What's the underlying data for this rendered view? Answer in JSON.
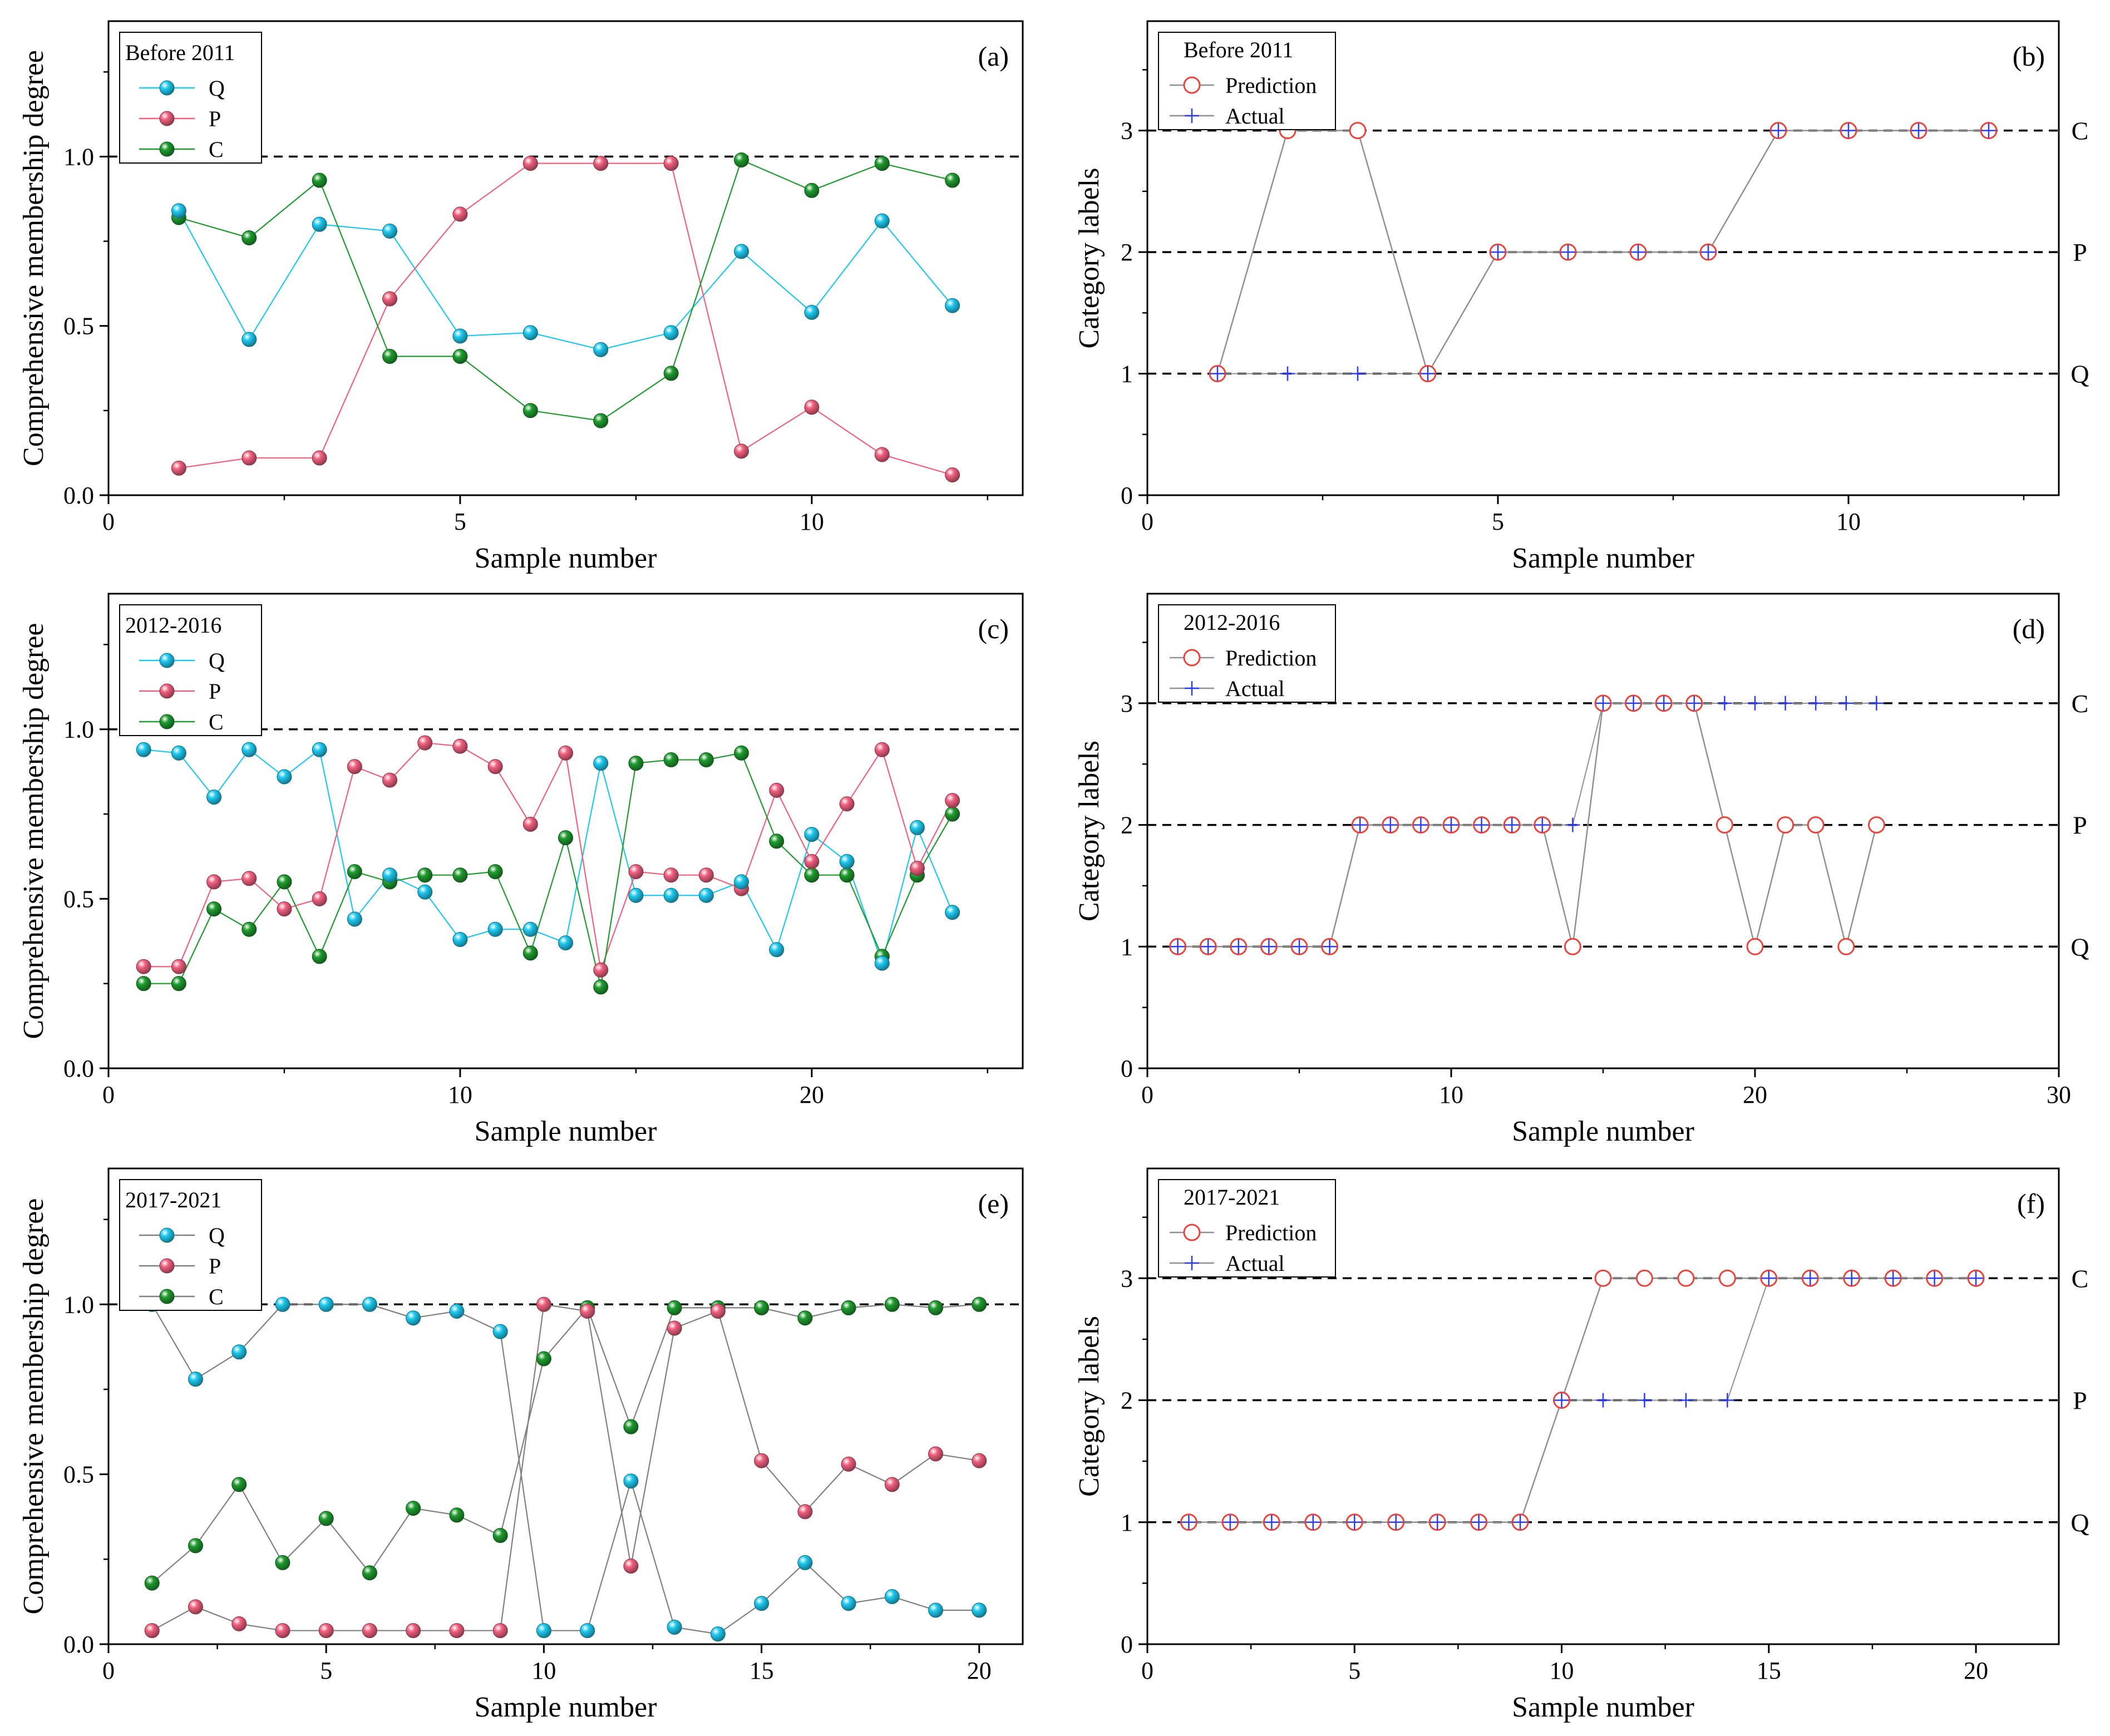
{
  "colors": {
    "Q": "#1ec8ee",
    "P": "#f0607f",
    "C": "#1e9a2e",
    "pred": "#e8453c",
    "actual": "#2a3df0",
    "link": "#909090"
  },
  "chart_data": [
    {
      "type": "line",
      "panel": "(a)",
      "legend_title": "Before 2011",
      "xlabel": "Sample number",
      "ylabel": "Comprehensive membership degree",
      "xlim": [
        0,
        13
      ],
      "ylim": [
        0,
        1.4
      ],
      "xticks": [
        0,
        5,
        10
      ],
      "yticks": [
        0.0,
        0.5,
        1.0
      ],
      "ytick_labels": [
        "0.0",
        "0.5",
        "1.0"
      ],
      "ref_line": 1.0,
      "x": [
        1,
        2,
        3,
        4,
        5,
        6,
        7,
        8,
        9,
        10,
        11,
        12
      ],
      "series": [
        {
          "name": "Q",
          "values": [
            0.84,
            0.46,
            0.8,
            0.78,
            0.47,
            0.48,
            0.43,
            0.48,
            0.72,
            0.54,
            0.81,
            0.56
          ]
        },
        {
          "name": "P",
          "values": [
            0.08,
            0.11,
            0.11,
            0.58,
            0.83,
            0.98,
            0.98,
            0.98,
            0.13,
            0.26,
            0.12,
            0.06
          ]
        },
        {
          "name": "C",
          "values": [
            0.82,
            0.76,
            0.93,
            0.41,
            0.41,
            0.25,
            0.22,
            0.36,
            0.99,
            0.9,
            0.98,
            0.93
          ]
        }
      ]
    },
    {
      "type": "scatter",
      "panel": "(b)",
      "legend_title": "Before 2011",
      "xlabel": "Sample number",
      "ylabel": "Category labels",
      "xlim": [
        0,
        13
      ],
      "ylim": [
        0,
        3.9
      ],
      "xticks": [
        0,
        5,
        10
      ],
      "yticks": [
        0,
        1,
        2,
        3
      ],
      "ref_lines": [
        1,
        2,
        3
      ],
      "right_labels": [
        "Q",
        "P",
        "C"
      ],
      "x": [
        1,
        2,
        3,
        4,
        5,
        6,
        7,
        8,
        9,
        10,
        11,
        12
      ],
      "series": [
        {
          "name": "Prediction",
          "values": [
            1,
            3,
            3,
            1,
            2,
            2,
            2,
            2,
            3,
            3,
            3,
            3
          ]
        },
        {
          "name": "Actual",
          "values": [
            1,
            1,
            1,
            1,
            2,
            2,
            2,
            2,
            3,
            3,
            3,
            3
          ]
        }
      ]
    },
    {
      "type": "line",
      "panel": "(c)",
      "legend_title": "2012-2016",
      "xlabel": "Sample number",
      "ylabel": "Comprehensive membership degree",
      "xlim": [
        0,
        26
      ],
      "ylim": [
        0,
        1.4
      ],
      "xticks": [
        0,
        10,
        20
      ],
      "yticks": [
        0.0,
        0.5,
        1.0
      ],
      "ytick_labels": [
        "0.0",
        "0.5",
        "1.0"
      ],
      "ref_line": 1.0,
      "x": [
        1,
        2,
        3,
        4,
        5,
        6,
        7,
        8,
        9,
        10,
        11,
        12,
        13,
        14,
        15,
        16,
        17,
        18,
        19,
        20,
        21,
        22,
        23,
        24
      ],
      "series": [
        {
          "name": "Q",
          "values": [
            0.94,
            0.93,
            0.8,
            0.94,
            0.86,
            0.94,
            0.44,
            0.57,
            0.52,
            0.38,
            0.41,
            0.41,
            0.37,
            0.9,
            0.51,
            0.51,
            0.51,
            0.55,
            0.35,
            0.69,
            0.61,
            0.31,
            0.71,
            0.46
          ]
        },
        {
          "name": "P",
          "values": [
            0.3,
            0.3,
            0.55,
            0.56,
            0.47,
            0.5,
            0.89,
            0.85,
            0.96,
            0.95,
            0.89,
            0.72,
            0.93,
            0.29,
            0.58,
            0.57,
            0.57,
            0.53,
            0.82,
            0.61,
            0.78,
            0.94,
            0.59,
            0.79
          ]
        },
        {
          "name": "C",
          "values": [
            0.25,
            0.25,
            0.47,
            0.41,
            0.55,
            0.33,
            0.58,
            0.55,
            0.57,
            0.57,
            0.58,
            0.34,
            0.68,
            0.24,
            0.9,
            0.91,
            0.91,
            0.93,
            0.67,
            0.57,
            0.57,
            0.33,
            0.57,
            0.75
          ]
        }
      ]
    },
    {
      "type": "scatter",
      "panel": "(d)",
      "legend_title": "2012-2016",
      "xlabel": "Sample number",
      "ylabel": "Category labels",
      "xlim": [
        0,
        30
      ],
      "ylim": [
        0,
        3.9
      ],
      "xticks": [
        0,
        10,
        20,
        30
      ],
      "yticks": [
        0,
        1,
        2,
        3
      ],
      "ref_lines": [
        1,
        2,
        3
      ],
      "right_labels": [
        "Q",
        "P",
        "C"
      ],
      "x": [
        1,
        2,
        3,
        4,
        5,
        6,
        7,
        8,
        9,
        10,
        11,
        12,
        13,
        14,
        15,
        16,
        17,
        18,
        19,
        20,
        21,
        22,
        23,
        24
      ],
      "series": [
        {
          "name": "Prediction",
          "values": [
            1,
            1,
            1,
            1,
            1,
            1,
            2,
            2,
            2,
            2,
            2,
            2,
            2,
            1,
            3,
            3,
            3,
            3,
            2,
            1,
            2,
            2,
            1,
            2
          ]
        },
        {
          "name": "Actual",
          "values": [
            1,
            1,
            1,
            1,
            1,
            1,
            2,
            2,
            2,
            2,
            2,
            2,
            2,
            2,
            3,
            3,
            3,
            3,
            3,
            3,
            3,
            3,
            3,
            3
          ]
        }
      ]
    },
    {
      "type": "line",
      "panel": "(e)",
      "legend_title": "2017-2021",
      "xlabel": "Sample number",
      "ylabel": "Comprehensive membership degree",
      "xlim": [
        0,
        21
      ],
      "ylim": [
        0,
        1.4
      ],
      "xticks": [
        0,
        5,
        10,
        15,
        20
      ],
      "yticks": [
        0.0,
        0.5,
        1.0
      ],
      "ytick_labels": [
        "0.0",
        "0.5",
        "1.0"
      ],
      "ref_line": 1.0,
      "x": [
        1,
        2,
        3,
        4,
        5,
        6,
        7,
        8,
        9,
        10,
        11,
        12,
        13,
        14,
        15,
        16,
        17,
        18,
        19,
        20
      ],
      "series": [
        {
          "name": "Q",
          "values": [
            1.0,
            0.78,
            0.86,
            1.0,
            1.0,
            1.0,
            0.96,
            0.98,
            0.92,
            0.04,
            0.04,
            0.48,
            0.05,
            0.03,
            0.12,
            0.24,
            0.12,
            0.14,
            0.1,
            0.1
          ]
        },
        {
          "name": "P",
          "values": [
            0.04,
            0.11,
            0.06,
            0.04,
            0.04,
            0.04,
            0.04,
            0.04,
            0.04,
            1.0,
            0.98,
            0.23,
            0.93,
            0.98,
            0.54,
            0.39,
            0.53,
            0.47,
            0.56,
            0.54
          ]
        },
        {
          "name": "C",
          "values": [
            0.18,
            0.29,
            0.47,
            0.24,
            0.37,
            0.21,
            0.4,
            0.38,
            0.32,
            0.84,
            0.99,
            0.64,
            0.99,
            0.99,
            0.99,
            0.96,
            0.99,
            1.0,
            0.99,
            1.0
          ]
        }
      ]
    },
    {
      "type": "scatter",
      "panel": "(f)",
      "legend_title": "2017-2021",
      "xlabel": "Sample number",
      "ylabel": "Category labels",
      "xlim": [
        0,
        22
      ],
      "ylim": [
        0,
        3.9
      ],
      "xticks": [
        0,
        5,
        10,
        15,
        20
      ],
      "yticks": [
        0,
        1,
        2,
        3
      ],
      "ref_lines": [
        1,
        2,
        3
      ],
      "right_labels": [
        "Q",
        "P",
        "C"
      ],
      "x": [
        1,
        2,
        3,
        4,
        5,
        6,
        7,
        8,
        9,
        10,
        11,
        12,
        13,
        14,
        15,
        16,
        17,
        18,
        19,
        20
      ],
      "series": [
        {
          "name": "Prediction",
          "values": [
            1,
            1,
            1,
            1,
            1,
            1,
            1,
            1,
            1,
            2,
            3,
            3,
            3,
            3,
            3,
            3,
            3,
            3,
            3,
            3
          ]
        },
        {
          "name": "Actual",
          "values": [
            1,
            1,
            1,
            1,
            1,
            1,
            1,
            1,
            1,
            2,
            2,
            2,
            2,
            2,
            3,
            3,
            3,
            3,
            3,
            3
          ]
        }
      ]
    }
  ]
}
